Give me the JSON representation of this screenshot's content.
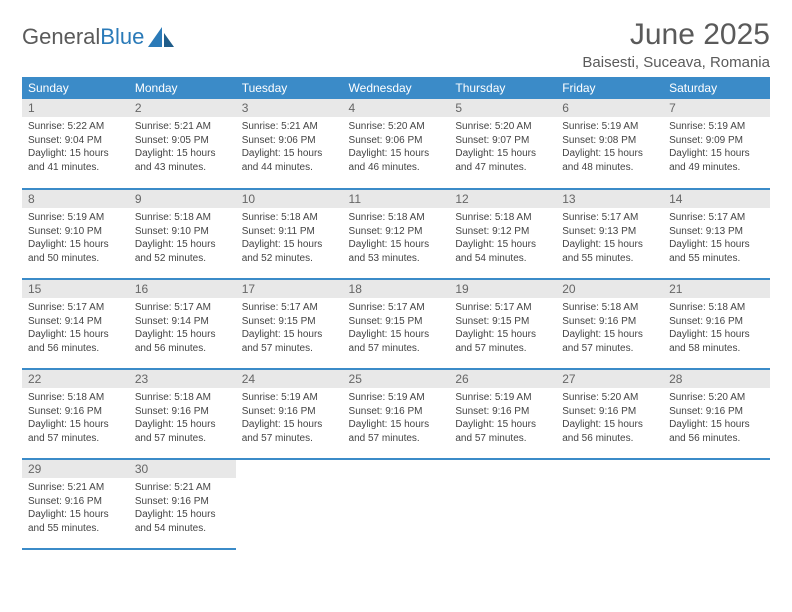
{
  "brand": {
    "part1": "General",
    "part2": "Blue"
  },
  "title": "June 2025",
  "location": "Baisesti, Suceava, Romania",
  "colors": {
    "header_bg": "#3b8bc8",
    "header_text": "#ffffff",
    "daynum_bg": "#e8e8e8",
    "border": "#3b8bc8",
    "text": "#444444",
    "title_text": "#5a5a5a"
  },
  "weekdays": [
    "Sunday",
    "Monday",
    "Tuesday",
    "Wednesday",
    "Thursday",
    "Friday",
    "Saturday"
  ],
  "weeks": [
    [
      {
        "day": "1",
        "lines": [
          "Sunrise: 5:22 AM",
          "Sunset: 9:04 PM",
          "Daylight: 15 hours",
          "and 41 minutes."
        ]
      },
      {
        "day": "2",
        "lines": [
          "Sunrise: 5:21 AM",
          "Sunset: 9:05 PM",
          "Daylight: 15 hours",
          "and 43 minutes."
        ]
      },
      {
        "day": "3",
        "lines": [
          "Sunrise: 5:21 AM",
          "Sunset: 9:06 PM",
          "Daylight: 15 hours",
          "and 44 minutes."
        ]
      },
      {
        "day": "4",
        "lines": [
          "Sunrise: 5:20 AM",
          "Sunset: 9:06 PM",
          "Daylight: 15 hours",
          "and 46 minutes."
        ]
      },
      {
        "day": "5",
        "lines": [
          "Sunrise: 5:20 AM",
          "Sunset: 9:07 PM",
          "Daylight: 15 hours",
          "and 47 minutes."
        ]
      },
      {
        "day": "6",
        "lines": [
          "Sunrise: 5:19 AM",
          "Sunset: 9:08 PM",
          "Daylight: 15 hours",
          "and 48 minutes."
        ]
      },
      {
        "day": "7",
        "lines": [
          "Sunrise: 5:19 AM",
          "Sunset: 9:09 PM",
          "Daylight: 15 hours",
          "and 49 minutes."
        ]
      }
    ],
    [
      {
        "day": "8",
        "lines": [
          "Sunrise: 5:19 AM",
          "Sunset: 9:10 PM",
          "Daylight: 15 hours",
          "and 50 minutes."
        ]
      },
      {
        "day": "9",
        "lines": [
          "Sunrise: 5:18 AM",
          "Sunset: 9:10 PM",
          "Daylight: 15 hours",
          "and 52 minutes."
        ]
      },
      {
        "day": "10",
        "lines": [
          "Sunrise: 5:18 AM",
          "Sunset: 9:11 PM",
          "Daylight: 15 hours",
          "and 52 minutes."
        ]
      },
      {
        "day": "11",
        "lines": [
          "Sunrise: 5:18 AM",
          "Sunset: 9:12 PM",
          "Daylight: 15 hours",
          "and 53 minutes."
        ]
      },
      {
        "day": "12",
        "lines": [
          "Sunrise: 5:18 AM",
          "Sunset: 9:12 PM",
          "Daylight: 15 hours",
          "and 54 minutes."
        ]
      },
      {
        "day": "13",
        "lines": [
          "Sunrise: 5:17 AM",
          "Sunset: 9:13 PM",
          "Daylight: 15 hours",
          "and 55 minutes."
        ]
      },
      {
        "day": "14",
        "lines": [
          "Sunrise: 5:17 AM",
          "Sunset: 9:13 PM",
          "Daylight: 15 hours",
          "and 55 minutes."
        ]
      }
    ],
    [
      {
        "day": "15",
        "lines": [
          "Sunrise: 5:17 AM",
          "Sunset: 9:14 PM",
          "Daylight: 15 hours",
          "and 56 minutes."
        ]
      },
      {
        "day": "16",
        "lines": [
          "Sunrise: 5:17 AM",
          "Sunset: 9:14 PM",
          "Daylight: 15 hours",
          "and 56 minutes."
        ]
      },
      {
        "day": "17",
        "lines": [
          "Sunrise: 5:17 AM",
          "Sunset: 9:15 PM",
          "Daylight: 15 hours",
          "and 57 minutes."
        ]
      },
      {
        "day": "18",
        "lines": [
          "Sunrise: 5:17 AM",
          "Sunset: 9:15 PM",
          "Daylight: 15 hours",
          "and 57 minutes."
        ]
      },
      {
        "day": "19",
        "lines": [
          "Sunrise: 5:17 AM",
          "Sunset: 9:15 PM",
          "Daylight: 15 hours",
          "and 57 minutes."
        ]
      },
      {
        "day": "20",
        "lines": [
          "Sunrise: 5:18 AM",
          "Sunset: 9:16 PM",
          "Daylight: 15 hours",
          "and 57 minutes."
        ]
      },
      {
        "day": "21",
        "lines": [
          "Sunrise: 5:18 AM",
          "Sunset: 9:16 PM",
          "Daylight: 15 hours",
          "and 58 minutes."
        ]
      }
    ],
    [
      {
        "day": "22",
        "lines": [
          "Sunrise: 5:18 AM",
          "Sunset: 9:16 PM",
          "Daylight: 15 hours",
          "and 57 minutes."
        ]
      },
      {
        "day": "23",
        "lines": [
          "Sunrise: 5:18 AM",
          "Sunset: 9:16 PM",
          "Daylight: 15 hours",
          "and 57 minutes."
        ]
      },
      {
        "day": "24",
        "lines": [
          "Sunrise: 5:19 AM",
          "Sunset: 9:16 PM",
          "Daylight: 15 hours",
          "and 57 minutes."
        ]
      },
      {
        "day": "25",
        "lines": [
          "Sunrise: 5:19 AM",
          "Sunset: 9:16 PM",
          "Daylight: 15 hours",
          "and 57 minutes."
        ]
      },
      {
        "day": "26",
        "lines": [
          "Sunrise: 5:19 AM",
          "Sunset: 9:16 PM",
          "Daylight: 15 hours",
          "and 57 minutes."
        ]
      },
      {
        "day": "27",
        "lines": [
          "Sunrise: 5:20 AM",
          "Sunset: 9:16 PM",
          "Daylight: 15 hours",
          "and 56 minutes."
        ]
      },
      {
        "day": "28",
        "lines": [
          "Sunrise: 5:20 AM",
          "Sunset: 9:16 PM",
          "Daylight: 15 hours",
          "and 56 minutes."
        ]
      }
    ],
    [
      {
        "day": "29",
        "lines": [
          "Sunrise: 5:21 AM",
          "Sunset: 9:16 PM",
          "Daylight: 15 hours",
          "and 55 minutes."
        ]
      },
      {
        "day": "30",
        "lines": [
          "Sunrise: 5:21 AM",
          "Sunset: 9:16 PM",
          "Daylight: 15 hours",
          "and 54 minutes."
        ]
      },
      null,
      null,
      null,
      null,
      null
    ]
  ]
}
